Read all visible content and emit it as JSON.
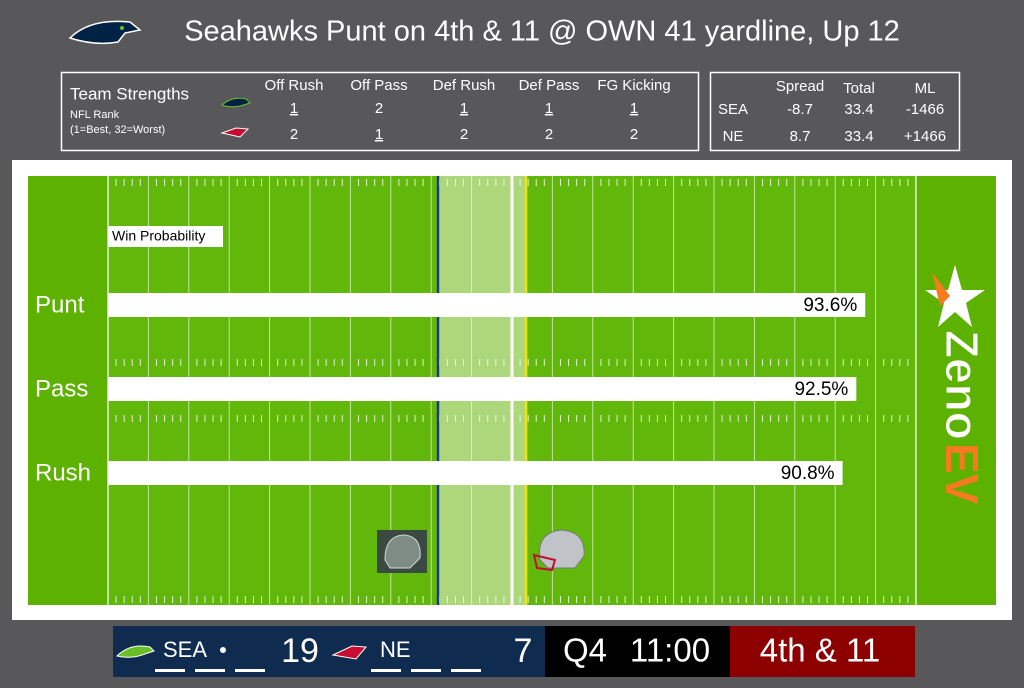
{
  "header": {
    "title": "Seahawks Punt on 4th & 11 @ OWN 41 yardline, Up 12"
  },
  "strengths": {
    "title": "Team Strengths",
    "subtitle": "NFL Rank",
    "note": "(1=Best, 32=Worst)",
    "columns": [
      "Off Rush",
      "Off Pass",
      "Def Rush",
      "Def Pass",
      "FG Kicking"
    ],
    "rows": [
      [
        1,
        2,
        1,
        1,
        1
      ],
      [
        2,
        1,
        2,
        2,
        2
      ]
    ]
  },
  "odds": {
    "columns": [
      "Spread",
      "Total",
      "ML"
    ],
    "rows": [
      [
        "SEA",
        -8.7,
        33.4,
        -1466
      ],
      [
        "NE",
        8.7,
        33.4,
        "+1466"
      ]
    ]
  },
  "chart_data": {
    "type": "bar",
    "title": "Win Probability",
    "categories": [
      "Punt",
      "Pass",
      "Rush"
    ],
    "values": [
      93.6,
      92.5,
      90.8
    ],
    "value_labels": [
      "93.6%",
      "92.5%",
      "90.8%"
    ],
    "xlim": [
      0,
      100
    ],
    "color": "#ffffff"
  },
  "logo": {
    "part1": "Zeno",
    "part2": "EV"
  },
  "scoreboard": {
    "home": "SEA",
    "home_score": 19,
    "away": "NE",
    "away_score": 7,
    "quarter": "Q4",
    "clock": "11:00",
    "down": "4th & 11"
  }
}
